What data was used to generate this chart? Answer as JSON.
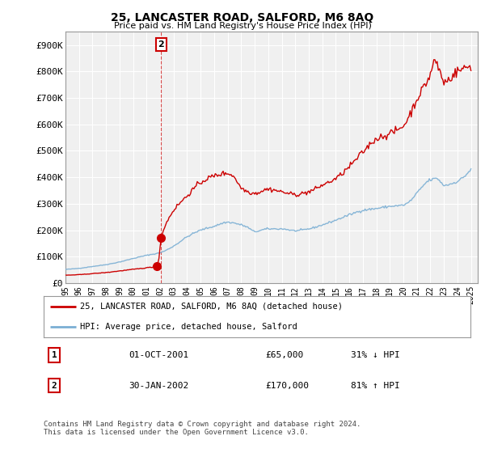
{
  "title": "25, LANCASTER ROAD, SALFORD, M6 8AQ",
  "subtitle": "Price paid vs. HM Land Registry's House Price Index (HPI)",
  "ylabel_ticks": [
    "£0",
    "£100K",
    "£200K",
    "£300K",
    "£400K",
    "£500K",
    "£600K",
    "£700K",
    "£800K",
    "£900K"
  ],
  "ytick_values": [
    0,
    100000,
    200000,
    300000,
    400000,
    500000,
    600000,
    700000,
    800000,
    900000
  ],
  "ylim": [
    0,
    950000
  ],
  "xlim_start": 1995.0,
  "xlim_end": 2025.5,
  "transaction1": {
    "date_num": 2001.75,
    "price": 65000,
    "label": "1",
    "date_str": "01-OCT-2001",
    "price_str": "£65,000",
    "pct": "31% ↓ HPI"
  },
  "transaction2": {
    "date_num": 2002.08,
    "price": 170000,
    "label": "2",
    "date_str": "30-JAN-2002",
    "price_str": "£170,000",
    "pct": "81% ↑ HPI"
  },
  "legend1_label": "25, LANCASTER ROAD, SALFORD, M6 8AQ (detached house)",
  "legend2_label": "HPI: Average price, detached house, Salford",
  "footer": "Contains HM Land Registry data © Crown copyright and database right 2024.\nThis data is licensed under the Open Government Licence v3.0.",
  "red_color": "#cc0000",
  "blue_color": "#7bafd4",
  "bg_color": "#f0f0f0",
  "grid_color": "#ffffff"
}
